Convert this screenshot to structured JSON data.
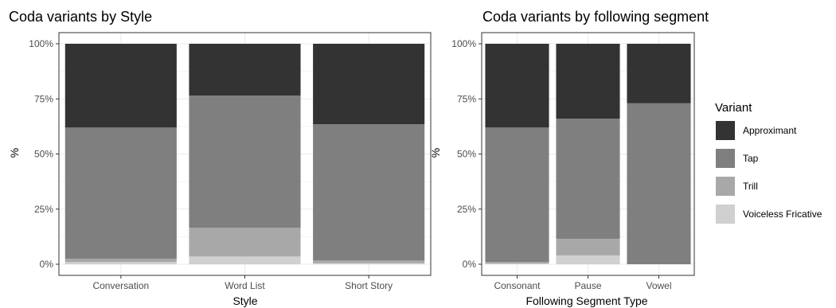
{
  "colors": {
    "Approximant": "#333333",
    "Tap": "#7f7f7f",
    "Trill": "#a8a8a8",
    "Voiceless Fricative": "#d0d0d0",
    "grid": "#ebebeb",
    "panel_border": "#333333"
  },
  "legend": {
    "title": "Variant",
    "items": [
      "Approximant",
      "Tap",
      "Trill",
      "Voiceless Fricative"
    ]
  },
  "chart_data": [
    {
      "type": "bar",
      "stacked": true,
      "title": "Coda variants by Style",
      "xlabel": "Style",
      "ylabel": "%",
      "ylim": [
        0,
        1
      ],
      "yticks": [
        "0%",
        "25%",
        "50%",
        "75%",
        "100%"
      ],
      "grid": true,
      "categories": [
        "Conversation",
        "Word List",
        "Short Story"
      ],
      "series": [
        {
          "name": "Voiceless Fricative",
          "values": [
            0.01,
            0.035,
            0.005
          ]
        },
        {
          "name": "Trill",
          "values": [
            0.015,
            0.13,
            0.012
          ]
        },
        {
          "name": "Tap",
          "values": [
            0.595,
            0.6,
            0.618
          ]
        },
        {
          "name": "Approximant",
          "values": [
            0.38,
            0.235,
            0.365
          ]
        }
      ]
    },
    {
      "type": "bar",
      "stacked": true,
      "title": "Coda variants by following segment",
      "xlabel": "Following Segment Type",
      "ylabel": "%",
      "ylim": [
        0,
        1
      ],
      "yticks": [
        "0%",
        "25%",
        "50%",
        "75%",
        "100%"
      ],
      "grid": true,
      "categories": [
        "Consonant",
        "Pause",
        "Vowel"
      ],
      "series": [
        {
          "name": "Voiceless Fricative",
          "values": [
            0.003,
            0.04,
            0.0
          ]
        },
        {
          "name": "Trill",
          "values": [
            0.007,
            0.075,
            0.0
          ]
        },
        {
          "name": "Tap",
          "values": [
            0.61,
            0.545,
            0.73
          ]
        },
        {
          "name": "Approximant",
          "values": [
            0.38,
            0.34,
            0.27
          ]
        }
      ]
    }
  ]
}
